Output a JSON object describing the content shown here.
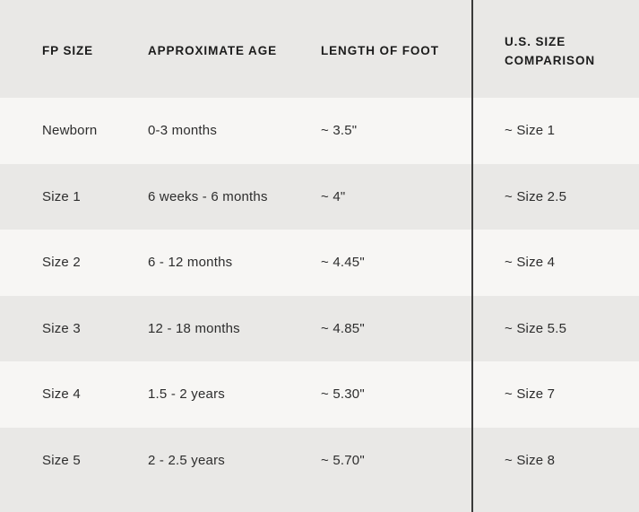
{
  "chart_data": {
    "type": "table",
    "columns": [
      "FP SIZE",
      "APPROXIMATE AGE",
      "LENGTH OF FOOT",
      "U.S. SIZE COMPARISON"
    ],
    "rows": [
      [
        "Newborn",
        "0-3 months",
        "~ 3.5\"",
        "~ Size 1"
      ],
      [
        "Size 1",
        "6 weeks - 6 months",
        "~ 4\"",
        "~ Size 2.5"
      ],
      [
        "Size 2",
        "6 - 12 months",
        "~ 4.45\"",
        "~ Size 4"
      ],
      [
        "Size 3",
        "12 - 18 months",
        "~ 4.85\"",
        "~ Size 5.5"
      ],
      [
        "Size 4",
        "1.5 - 2 years",
        "~ 5.30\"",
        "~ Size 7"
      ],
      [
        "Size 5",
        "2 - 2.5 years",
        "~ 5.70\"",
        "~ Size 8"
      ]
    ],
    "layout": {
      "stripe_style": "alternating rows, first data row light",
      "divider": "full-height vertical line before last column"
    }
  },
  "colors": {
    "stripe_gray": "#e9e8e6",
    "stripe_light": "#f7f6f4",
    "divider": "#3a3a3a",
    "header_text": "#1c1c1c",
    "body_text": "#2d2d2d"
  }
}
